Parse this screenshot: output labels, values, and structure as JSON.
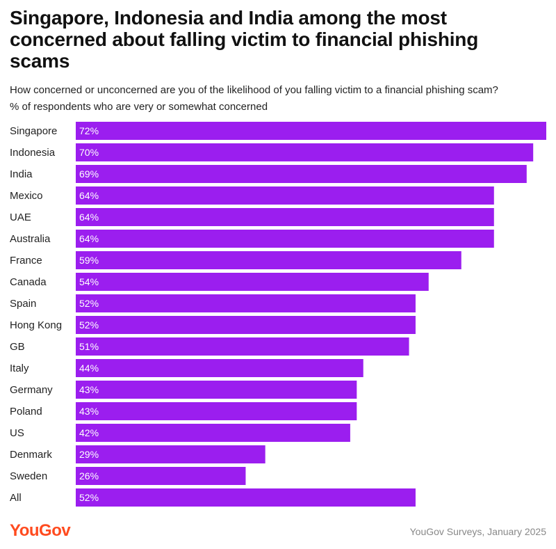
{
  "title": "Singapore, Indonesia and India among the most concerned about falling victim to financial phishing scams",
  "subtitle_lines": [
    "How concerned or unconcerned are you of the likelihood of you falling victim to a financial phishing scam?",
    "% of respondents who are very or somewhat concerned"
  ],
  "colors": {
    "bar": "#9b1eef",
    "logo": "#ff4b1f"
  },
  "chart_data": {
    "type": "bar",
    "orientation": "horizontal",
    "categories": [
      "Singapore",
      "Indonesia",
      "India",
      "Mexico",
      "UAE",
      "Australia",
      "France",
      "Canada",
      "Spain",
      "Hong Kong",
      "GB",
      "Italy",
      "Germany",
      "Poland",
      "US",
      "Denmark",
      "Sweden",
      "All"
    ],
    "values": [
      72,
      70,
      69,
      64,
      64,
      64,
      59,
      54,
      52,
      52,
      51,
      44,
      43,
      43,
      42,
      29,
      26,
      52
    ],
    "value_labels": [
      "72%",
      "70%",
      "69%",
      "64%",
      "64%",
      "64%",
      "59%",
      "54%",
      "52%",
      "52%",
      "51%",
      "44%",
      "43%",
      "43%",
      "42%",
      "29%",
      "26%",
      "52%"
    ],
    "xlim": [
      0,
      72
    ],
    "grid": false,
    "legend": "none"
  },
  "footer": {
    "logo_text": "YouGov",
    "source": "YouGov Surveys, January 2025"
  }
}
